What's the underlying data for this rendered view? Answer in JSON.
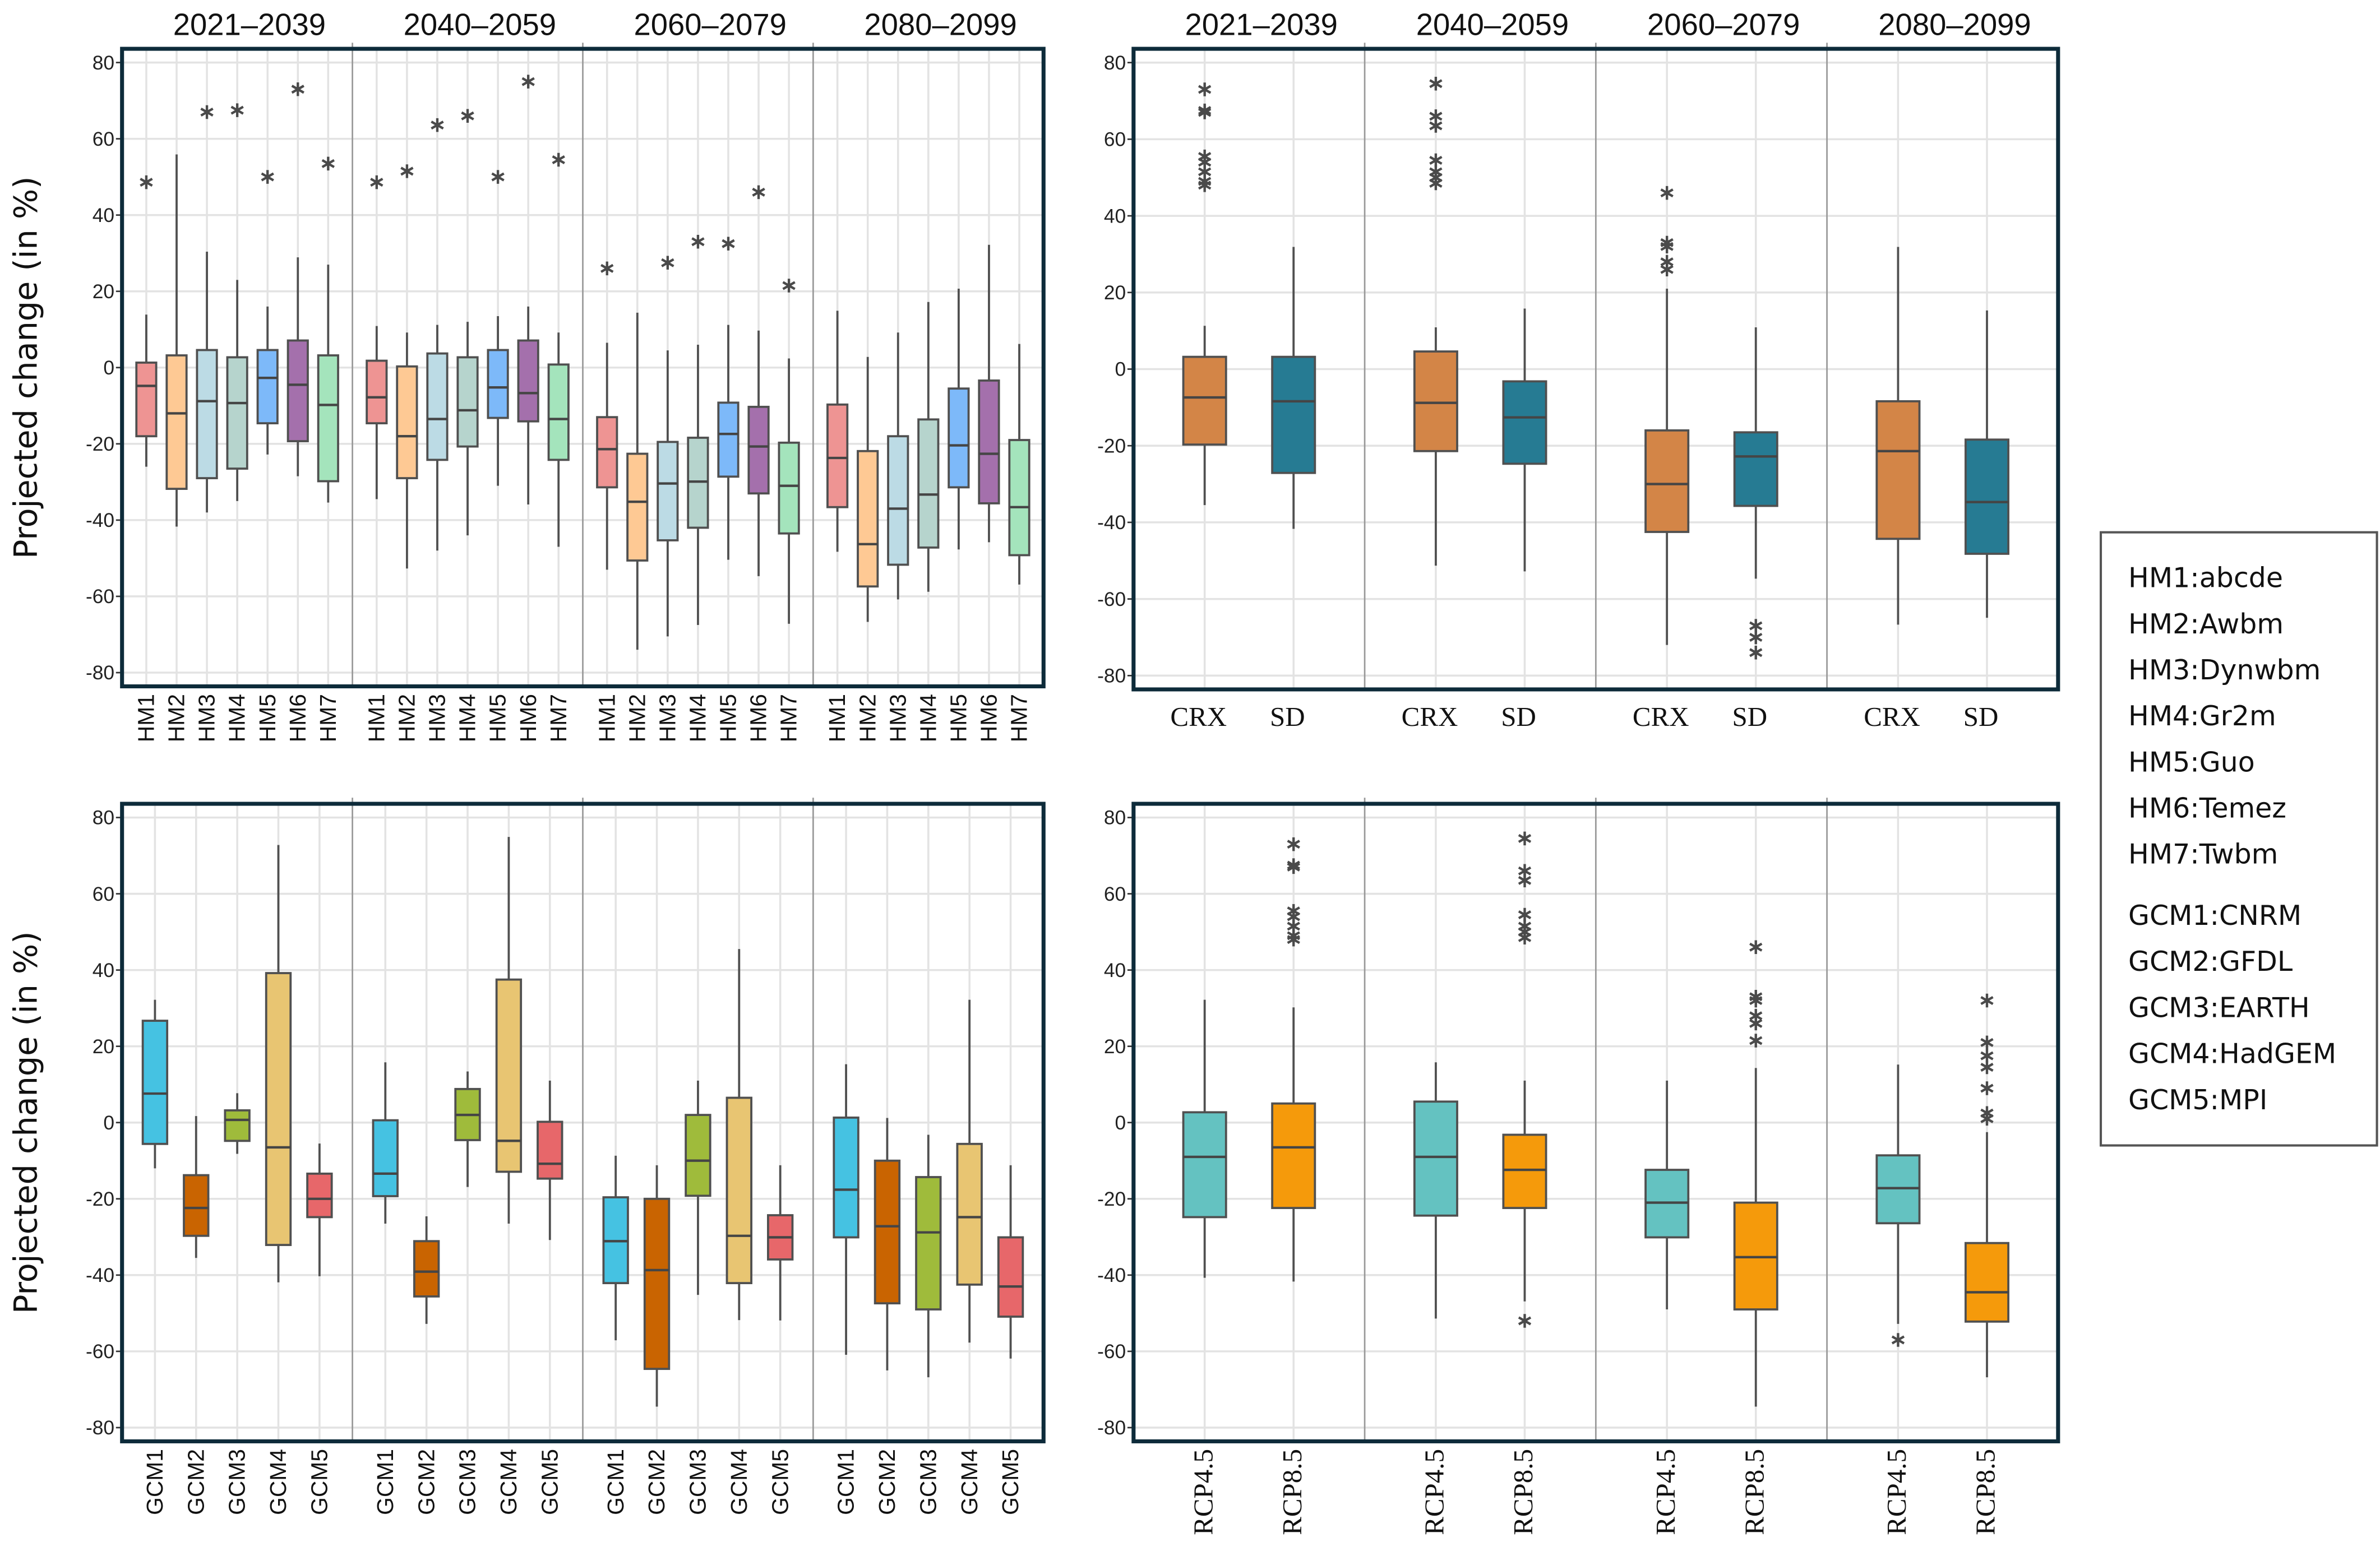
{
  "legend": {
    "items": [
      "HM1:abcde",
      "HM2:Awbm",
      "HM3:Dynwbm",
      "HM4:Gr2m",
      "HM5:Guo",
      "HM6:Temez",
      "HM7:Twbm",
      "GCM1:CNRM",
      "GCM2:GFDL",
      "GCM3:EARTH",
      "GCM4:HadGEM",
      "GCM5:MPI"
    ]
  },
  "chart_data": [
    {
      "type": "box",
      "id": "hm",
      "ylabel": "Projected change (in %)",
      "periods": [
        "2021–2039",
        "2040–2059",
        "2060–2079",
        "2080–2099"
      ],
      "show_periods": true,
      "ylim": [
        -83.6,
        83.6
      ],
      "yticks": [
        80,
        60,
        40,
        20,
        0,
        -20,
        -40,
        -60,
        -80
      ],
      "grid": true,
      "categories": [
        "HM1",
        "HM2",
        "HM3",
        "HM4",
        "HM5",
        "HM6",
        "HM7"
      ],
      "colors": [
        "#ee9493",
        "#fec994",
        "#bcdbe5",
        "#b6d4cd",
        "#7db9f9",
        "#a470ac",
        "#a4e4bc"
      ],
      "label_style": "rotated-sans",
      "groups": [
        [
          [
            -26,
            -18,
            -4.8,
            1.3,
            13.9,
            [
              48.6
            ]
          ],
          [
            -41.7,
            -31.8,
            -12,
            3.2,
            55.9,
            []
          ],
          [
            -38,
            -29,
            -8.8,
            4.6,
            30.4,
            [
              67
            ]
          ],
          [
            -35,
            -26.5,
            -9.3,
            2.7,
            23,
            [
              67.5
            ]
          ],
          [
            -22.8,
            -14.6,
            -2.7,
            4.6,
            16,
            [
              50
            ]
          ],
          [
            -28.5,
            -19.3,
            -4.5,
            7.1,
            28.9,
            [
              73
            ]
          ],
          [
            -35.4,
            -29.8,
            -9.8,
            3.2,
            27,
            [
              53.5
            ]
          ]
        ],
        [
          [
            -34.5,
            -14.6,
            -7.8,
            1.8,
            10.9,
            [
              48.6
            ]
          ],
          [
            -52.7,
            -29,
            -18,
            0.3,
            9.2,
            [
              51.5
            ]
          ],
          [
            -48,
            -24.2,
            -13.5,
            3.7,
            11.2,
            [
              63.6
            ]
          ],
          [
            -44,
            -20.7,
            -11.2,
            2.7,
            12,
            [
              66
            ]
          ],
          [
            -31,
            -13.2,
            -5.2,
            4.6,
            13.5,
            [
              50
            ]
          ],
          [
            -35.9,
            -14.1,
            -6.7,
            7.1,
            16,
            [
              75
            ]
          ],
          [
            -47,
            -24.2,
            -13.5,
            0.8,
            9.2,
            [
              54.5
            ]
          ]
        ],
        [
          [
            -53,
            -31.4,
            -21.4,
            -13,
            6.5,
            [
              26
            ]
          ],
          [
            -74,
            -50.6,
            -35.2,
            -22.6,
            14.4,
            []
          ],
          [
            -70.5,
            -45.3,
            -30.4,
            -19.5,
            4.5,
            [
              27.5
            ]
          ],
          [
            -67.5,
            -42,
            -29.9,
            -18.4,
            6,
            [
              33
            ]
          ],
          [
            -50.4,
            -28.6,
            -17.4,
            -9.2,
            11.2,
            [
              32.5
            ]
          ],
          [
            -54.7,
            -33,
            -20.7,
            -10.3,
            9.7,
            [
              46
            ]
          ],
          [
            -67.2,
            -43.5,
            -31,
            -19.7,
            2.4,
            [
              21.5
            ]
          ]
        ],
        [
          [
            -48.3,
            -36.6,
            -23.7,
            -9.7,
            14.9,
            []
          ],
          [
            -66.7,
            -57.4,
            -46.3,
            -21.9,
            2.8,
            []
          ],
          [
            -60.8,
            -51.7,
            -37,
            -18,
            9.2,
            []
          ],
          [
            -58.8,
            -47.2,
            -33.3,
            -13.6,
            17.2,
            []
          ],
          [
            -47.7,
            -31.4,
            -20.4,
            -5.5,
            20.7,
            []
          ],
          [
            -45.8,
            -35.6,
            -22.6,
            -3.4,
            32.2,
            []
          ],
          [
            -56.9,
            -49.2,
            -36.6,
            -19,
            6.2,
            []
          ]
        ]
      ]
    },
    {
      "type": "box",
      "id": "method",
      "ylabel": "",
      "periods": [
        "2021–2039",
        "2040–2059",
        "2060–2079",
        "2080–2099"
      ],
      "show_periods": true,
      "ylim": [
        -83.6,
        83.6
      ],
      "yticks": [
        80,
        60,
        40,
        20,
        0,
        -20,
        -40,
        -60,
        -80
      ],
      "grid": true,
      "categories": [
        "CRX",
        "SD"
      ],
      "colors": [
        "#d38547",
        "#267b93"
      ],
      "label_style": "horizontal-serif",
      "groups": [
        [
          [
            -35.5,
            -19.7,
            -7.4,
            3.2,
            11.3,
            [
              73,
              67.5,
              67,
              55.5,
              54,
              51.5,
              49,
              48
            ]
          ],
          [
            -41.7,
            -27.1,
            -8.4,
            3.2,
            31.9,
            []
          ]
        ],
        [
          [
            -51.3,
            -21.4,
            -8.8,
            4.6,
            10.9,
            [
              74.5,
              66,
              63.5,
              54.5,
              51.5,
              50,
              48.5
            ]
          ],
          [
            -52.8,
            -24.7,
            -12.6,
            -3.2,
            15.8,
            []
          ]
        ],
        [
          [
            -72,
            -42.5,
            -30,
            -16,
            21,
            [
              46,
              33,
              32,
              28,
              26
            ]
          ],
          [
            -54.7,
            -35.7,
            -22.8,
            -16.5,
            10.9,
            [
              -67,
              -70,
              -74
            ]
          ]
        ],
        [
          [
            -66.7,
            -44.3,
            -21.4,
            -8.4,
            31.9,
            []
          ],
          [
            -64.9,
            -48.2,
            -34.7,
            -18.4,
            15.3,
            []
          ]
        ]
      ]
    },
    {
      "type": "box",
      "id": "gcm",
      "ylabel": "Projected change (in %)",
      "periods": [
        "2021–2039",
        "2040–2059",
        "2060–2079",
        "2080–2099"
      ],
      "show_periods": false,
      "ylim": [
        -83.6,
        83.6
      ],
      "yticks": [
        80,
        60,
        40,
        20,
        0,
        -20,
        -40,
        -60,
        -80
      ],
      "grid": true,
      "categories": [
        "GCM1",
        "GCM2",
        "GCM3",
        "GCM4",
        "GCM5"
      ],
      "colors": [
        "#45c2e2",
        "#c96401",
        "#9fbb3b",
        "#e8c572",
        "#e7676a"
      ],
      "label_style": "rotated-sans",
      "groups": [
        [
          [
            -12,
            -5.6,
            7.6,
            26.7,
            32.2,
            []
          ],
          [
            -35.5,
            -29.7,
            -22.4,
            -13.8,
            1.7,
            []
          ],
          [
            -8.2,
            -4.8,
            0.7,
            3.2,
            7.7,
            []
          ],
          [
            -41.9,
            -32.1,
            -6.5,
            39.2,
            72.8,
            []
          ],
          [
            -40.3,
            -24.8,
            -20,
            -13.4,
            -5.5,
            []
          ]
        ],
        [
          [
            -26.5,
            -19.3,
            -13.4,
            0.6,
            15.8,
            []
          ],
          [
            -52.8,
            -45.6,
            -39.1,
            -31.1,
            -24.6,
            []
          ],
          [
            -16.9,
            -4.6,
            2,
            8.8,
            13.4,
            []
          ],
          [
            -26.5,
            -12.9,
            -4.8,
            37.5,
            74.9,
            []
          ],
          [
            -30.8,
            -14.7,
            -10.8,
            0.2,
            11,
            []
          ]
        ],
        [
          [
            -57.1,
            -42.1,
            -31.1,
            -19.6,
            -8.7,
            []
          ],
          [
            -74.5,
            -64.6,
            -38.7,
            -20,
            -11.2,
            []
          ],
          [
            -45.2,
            -19.2,
            -10,
            2,
            11,
            []
          ],
          [
            -51.8,
            -42.1,
            -29.7,
            6.5,
            45.5,
            []
          ],
          [
            -51.9,
            -35.9,
            -30.1,
            -24.3,
            -11.2,
            []
          ]
        ],
        [
          [
            -60.9,
            -30.1,
            -17.6,
            1.3,
            15.3,
            []
          ],
          [
            -65,
            -47.4,
            -27.2,
            -10,
            1.2,
            []
          ],
          [
            -66.8,
            -49,
            -28.8,
            -14.3,
            -3.2,
            []
          ],
          [
            -57.7,
            -42.5,
            -24.8,
            -5.6,
            32.2,
            []
          ],
          [
            -61.9,
            -50.9,
            -43,
            -30.1,
            -11.2,
            []
          ]
        ]
      ]
    },
    {
      "type": "box",
      "id": "rcp",
      "ylabel": "",
      "periods": [
        "2021–2039",
        "2040–2059",
        "2060–2079",
        "2080–2099"
      ],
      "show_periods": false,
      "ylim": [
        -83.6,
        83.6
      ],
      "yticks": [
        80,
        60,
        40,
        20,
        0,
        -20,
        -40,
        -60,
        -80
      ],
      "grid": true,
      "categories": [
        "RCP4.5",
        "RCP8.5"
      ],
      "colors": [
        "#64c2c1",
        "#f59a0b"
      ],
      "label_style": "rotated-serif",
      "groups": [
        [
          [
            -40.7,
            -24.8,
            -9,
            2.7,
            32.2,
            []
          ],
          [
            -41.7,
            -22.4,
            -6.5,
            5,
            30.2,
            [
              73,
              67.5,
              67,
              55.5,
              54,
              51.5,
              49,
              48
            ]
          ]
        ],
        [
          [
            -51.4,
            -24.4,
            -9,
            5.5,
            15.8,
            []
          ],
          [
            -46.9,
            -22.4,
            -12.4,
            -3.2,
            11,
            [
              74.5,
              66,
              63.5,
              54.5,
              51.5,
              50,
              48.5,
              -52
            ]
          ]
        ],
        [
          [
            -49,
            -30.1,
            -21,
            -12.4,
            11,
            []
          ],
          [
            -74.5,
            -49,
            -35.3,
            -21,
            14.3,
            [
              46,
              33,
              32,
              28,
              26,
              21.5
            ]
          ]
        ],
        [
          [
            -52.8,
            -26.4,
            -17.2,
            -8.6,
            15.2,
            [
              -57
            ]
          ],
          [
            -66.8,
            -52.2,
            -44.5,
            -31.6,
            -2.5,
            [
              32,
              21,
              17.5,
              14.5,
              9,
              2.5,
              1
            ]
          ]
        ]
      ]
    }
  ]
}
